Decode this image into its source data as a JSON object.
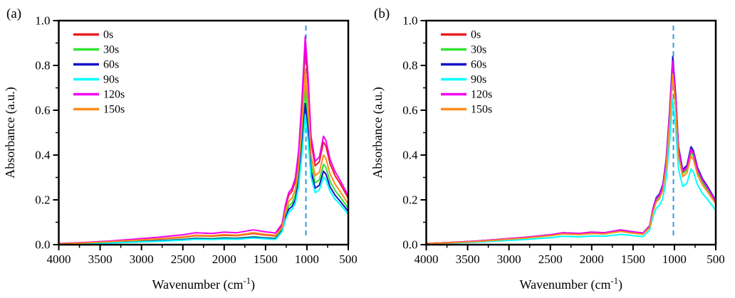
{
  "figure": {
    "background": "#ffffff"
  },
  "chart_data": [
    {
      "type": "line",
      "panel_label": "(a)",
      "xlabel": "Wavenumber (cm⁻¹)",
      "ylabel": "Absorbance (a.u.)",
      "xlim": [
        4000,
        500
      ],
      "ylim": [
        0.0,
        1.0
      ],
      "x_ticks": [
        4000,
        3500,
        3000,
        2500,
        2000,
        1500,
        1000,
        500
      ],
      "x_minor_step": 250,
      "y_ticks": [
        "0.0",
        "0.2",
        "0.4",
        "0.6",
        "0.8",
        "1.0"
      ],
      "y_minor_step": 0.1,
      "grid": false,
      "legend_position": "top-left-inside",
      "guide_line": {
        "x": 1012,
        "style": "dashed",
        "color": "#2e9bd6"
      },
      "x": [
        4000,
        3700,
        3400,
        3100,
        2800,
        2500,
        2350,
        2150,
        2000,
        1850,
        1650,
        1500,
        1380,
        1300,
        1260,
        1220,
        1180,
        1140,
        1100,
        1060,
        1020,
        985,
        950,
        900,
        850,
        800,
        770,
        720,
        660,
        600,
        500
      ],
      "series": [
        {
          "name": "0s",
          "color": "#ed1c24",
          "values": [
            0.004,
            0.008,
            0.012,
            0.018,
            0.025,
            0.033,
            0.04,
            0.038,
            0.042,
            0.04,
            0.05,
            0.043,
            0.039,
            0.088,
            0.167,
            0.22,
            0.238,
            0.282,
            0.396,
            0.616,
            0.88,
            0.704,
            0.458,
            0.352,
            0.37,
            0.458,
            0.44,
            0.361,
            0.308,
            0.273,
            0.207
          ]
        },
        {
          "name": "30s",
          "color": "#2ee52e",
          "values": [
            0.003,
            0.006,
            0.009,
            0.013,
            0.018,
            0.024,
            0.029,
            0.028,
            0.031,
            0.029,
            0.036,
            0.031,
            0.029,
            0.069,
            0.131,
            0.173,
            0.186,
            0.221,
            0.311,
            0.483,
            0.69,
            0.552,
            0.359,
            0.276,
            0.29,
            0.359,
            0.345,
            0.283,
            0.242,
            0.214,
            0.162
          ]
        },
        {
          "name": "60s",
          "color": "#1414c8",
          "values": [
            0.003,
            0.005,
            0.008,
            0.012,
            0.017,
            0.022,
            0.027,
            0.025,
            0.028,
            0.027,
            0.033,
            0.029,
            0.026,
            0.063,
            0.12,
            0.158,
            0.17,
            0.202,
            0.284,
            0.441,
            0.63,
            0.504,
            0.328,
            0.252,
            0.265,
            0.328,
            0.315,
            0.258,
            0.221,
            0.195,
            0.148
          ]
        },
        {
          "name": "90s",
          "color": "#00ffff",
          "values": [
            0.002,
            0.005,
            0.007,
            0.011,
            0.015,
            0.02,
            0.024,
            0.023,
            0.025,
            0.024,
            0.03,
            0.026,
            0.023,
            0.058,
            0.11,
            0.145,
            0.157,
            0.186,
            0.261,
            0.406,
            0.58,
            0.464,
            0.302,
            0.232,
            0.244,
            0.302,
            0.29,
            0.238,
            0.203,
            0.18,
            0.136
          ]
        },
        {
          "name": "120s",
          "color": "#f200f2",
          "values": [
            0.005,
            0.01,
            0.016,
            0.024,
            0.033,
            0.044,
            0.053,
            0.05,
            0.056,
            0.053,
            0.066,
            0.057,
            0.052,
            0.093,
            0.177,
            0.233,
            0.251,
            0.298,
            0.419,
            0.651,
            0.93,
            0.744,
            0.484,
            0.372,
            0.391,
            0.484,
            0.465,
            0.381,
            0.326,
            0.288,
            0.219
          ]
        },
        {
          "name": "150s",
          "color": "#ff8c19",
          "values": [
            0.004,
            0.008,
            0.013,
            0.019,
            0.026,
            0.035,
            0.042,
            0.04,
            0.045,
            0.042,
            0.053,
            0.046,
            0.042,
            0.077,
            0.146,
            0.193,
            0.208,
            0.246,
            0.347,
            0.539,
            0.77,
            0.616,
            0.4,
            0.308,
            0.323,
            0.4,
            0.385,
            0.316,
            0.27,
            0.239,
            0.181
          ]
        }
      ]
    },
    {
      "type": "line",
      "panel_label": "(b)",
      "xlabel": "Wavenumber (cm⁻¹)",
      "ylabel": "Absorbance (a.u.)",
      "xlim": [
        4000,
        500
      ],
      "ylim": [
        0.0,
        1.0
      ],
      "x_ticks": [
        4000,
        3500,
        3000,
        2500,
        2000,
        1500,
        1000,
        500
      ],
      "x_minor_step": 250,
      "y_ticks": [
        "0.0",
        "0.2",
        "0.4",
        "0.6",
        "0.8",
        "1.0"
      ],
      "y_minor_step": 0.1,
      "grid": false,
      "legend_position": "top-left-inside",
      "guide_line": {
        "x": 1012,
        "style": "dashed",
        "color": "#2e9bd6"
      },
      "x": [
        4000,
        3700,
        3400,
        3100,
        2800,
        2500,
        2350,
        2150,
        2000,
        1850,
        1650,
        1500,
        1380,
        1300,
        1260,
        1220,
        1180,
        1140,
        1100,
        1060,
        1020,
        985,
        950,
        900,
        850,
        800,
        770,
        720,
        660,
        600,
        500
      ],
      "series": [
        {
          "name": "0s",
          "color": "#ed1c24",
          "values": [
            0.005,
            0.01,
            0.015,
            0.023,
            0.031,
            0.042,
            0.05,
            0.048,
            0.053,
            0.05,
            0.063,
            0.054,
            0.049,
            0.081,
            0.154,
            0.203,
            0.219,
            0.259,
            0.365,
            0.567,
            0.81,
            0.648,
            0.421,
            0.324,
            0.34,
            0.421,
            0.405,
            0.332,
            0.284,
            0.251,
            0.19
          ]
        },
        {
          "name": "30s",
          "color": "#2ee52e",
          "values": [
            0.005,
            0.009,
            0.014,
            0.022,
            0.03,
            0.04,
            0.048,
            0.045,
            0.05,
            0.048,
            0.059,
            0.051,
            0.047,
            0.079,
            0.15,
            0.198,
            0.213,
            0.253,
            0.356,
            0.553,
            0.79,
            0.632,
            0.411,
            0.316,
            0.332,
            0.411,
            0.395,
            0.324,
            0.277,
            0.245,
            0.186
          ]
        },
        {
          "name": "60s",
          "color": "#1414c8",
          "values": [
            0.005,
            0.01,
            0.016,
            0.024,
            0.033,
            0.044,
            0.053,
            0.05,
            0.056,
            0.053,
            0.066,
            0.057,
            0.052,
            0.084,
            0.16,
            0.21,
            0.227,
            0.269,
            0.378,
            0.588,
            0.84,
            0.672,
            0.437,
            0.336,
            0.353,
            0.437,
            0.42,
            0.344,
            0.294,
            0.26,
            0.197
          ]
        },
        {
          "name": "90s",
          "color": "#00ffff",
          "values": [
            0.004,
            0.007,
            0.011,
            0.017,
            0.023,
            0.031,
            0.037,
            0.035,
            0.039,
            0.037,
            0.046,
            0.04,
            0.036,
            0.065,
            0.124,
            0.163,
            0.176,
            0.208,
            0.293,
            0.455,
            0.65,
            0.52,
            0.338,
            0.26,
            0.273,
            0.338,
            0.325,
            0.267,
            0.228,
            0.202,
            0.153
          ]
        },
        {
          "name": "120s",
          "color": "#f200f2",
          "values": [
            0.005,
            0.01,
            0.016,
            0.024,
            0.033,
            0.044,
            0.053,
            0.05,
            0.056,
            0.053,
            0.066,
            0.057,
            0.052,
            0.082,
            0.156,
            0.205,
            0.221,
            0.262,
            0.369,
            0.574,
            0.82,
            0.656,
            0.426,
            0.328,
            0.344,
            0.426,
            0.41,
            0.336,
            0.287,
            0.254,
            0.193
          ]
        },
        {
          "name": "150s",
          "color": "#ff8c19",
          "values": [
            0.005,
            0.009,
            0.014,
            0.022,
            0.03,
            0.04,
            0.048,
            0.045,
            0.05,
            0.048,
            0.059,
            0.051,
            0.047,
            0.076,
            0.144,
            0.19,
            0.205,
            0.243,
            0.342,
            0.532,
            0.76,
            0.608,
            0.395,
            0.304,
            0.319,
            0.395,
            0.38,
            0.312,
            0.266,
            0.236,
            0.182
          ]
        }
      ]
    }
  ]
}
